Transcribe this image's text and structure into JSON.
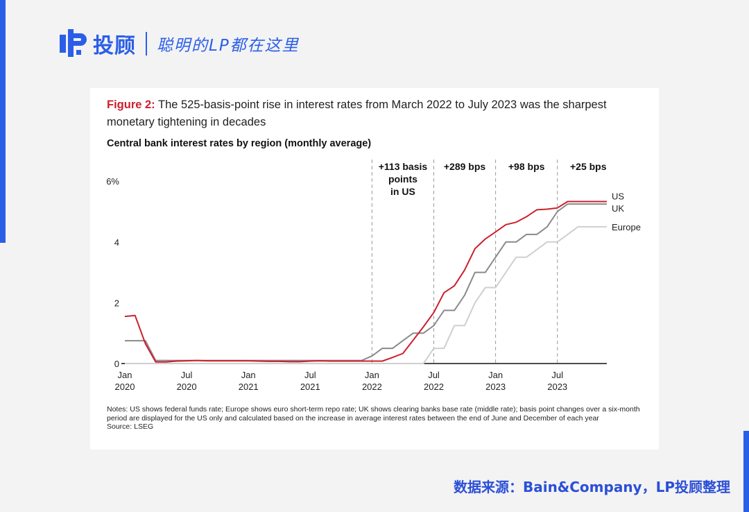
{
  "header": {
    "brand_name": "投顾",
    "slogan": "聪明的LP都在这里"
  },
  "figure": {
    "label": "Figure 2:",
    "title": "The 525-basis-point rise in interest rates from March 2022 to July 2023 was the sharpest monetary tightening in decades",
    "subtitle": "Central bank interest rates by region (monthly average)",
    "notes": "Notes: US shows federal funds rate; Europe shows euro short-term repo rate; UK shows clearing banks base rate (middle rate); basis point changes over a six-month period are displayed for the US only and calculated based on the increase in average interest rates between the end of June and December of each year",
    "source": "Source: LSEG"
  },
  "footer": {
    "source_text": "数据来源：Bain&Company，LP投顾整理"
  },
  "colors": {
    "brand": "#2b5ee8",
    "us": "#cc1f2c",
    "uk": "#8a8a8d",
    "europe": "#cfcfd1"
  },
  "chart_data": {
    "type": "line",
    "title": "Central bank interest rates by region (monthly average)",
    "xlabel": "",
    "ylabel": "",
    "ylim": [
      0,
      6
    ],
    "yticks": [
      {
        "value": 0,
        "label": "0"
      },
      {
        "value": 2,
        "label": "2"
      },
      {
        "value": 4,
        "label": "4"
      },
      {
        "value": 6,
        "label": "6%"
      }
    ],
    "xticks": [
      {
        "month": 0,
        "line1": "Jan",
        "line2": "2020"
      },
      {
        "month": 6,
        "line1": "Jul",
        "line2": "2020"
      },
      {
        "month": 12,
        "line1": "Jan",
        "line2": "2021"
      },
      {
        "month": 18,
        "line1": "Jul",
        "line2": "2021"
      },
      {
        "month": 24,
        "line1": "Jan",
        "line2": "2022"
      },
      {
        "month": 30,
        "line1": "Jul",
        "line2": "2022"
      },
      {
        "month": 36,
        "line1": "Jan",
        "line2": "2023"
      },
      {
        "month": 42,
        "line1": "Jul",
        "line2": "2023"
      }
    ],
    "x_months": [
      0,
      1,
      2,
      3,
      4,
      5,
      6,
      7,
      8,
      9,
      10,
      11,
      12,
      13,
      14,
      15,
      16,
      17,
      18,
      19,
      20,
      21,
      22,
      23,
      24,
      25,
      26,
      27,
      28,
      29,
      30,
      31,
      32,
      33,
      34,
      35,
      36,
      37,
      38,
      39,
      40,
      41,
      42,
      43,
      44,
      45,
      46,
      47
    ],
    "series": [
      {
        "name": "Europe",
        "label": "Europe",
        "values": [
          0,
          0,
          0,
          0,
          0,
          0,
          0,
          0,
          0,
          0,
          0,
          0,
          0,
          0,
          0,
          0,
          0,
          0,
          0,
          0,
          0,
          0,
          0,
          0,
          0,
          0,
          0,
          0,
          0,
          0,
          0.5,
          0.5,
          1.25,
          1.25,
          2.0,
          2.5,
          2.5,
          3.0,
          3.5,
          3.5,
          3.75,
          4.0,
          4.0,
          4.25,
          4.5,
          4.5,
          4.5,
          4.5
        ]
      },
      {
        "name": "UK",
        "label": "UK",
        "values": [
          0.75,
          0.75,
          0.75,
          0.1,
          0.1,
          0.1,
          0.1,
          0.1,
          0.1,
          0.1,
          0.1,
          0.1,
          0.1,
          0.1,
          0.1,
          0.1,
          0.1,
          0.1,
          0.1,
          0.1,
          0.1,
          0.1,
          0.1,
          0.1,
          0.25,
          0.5,
          0.5,
          0.75,
          1.0,
          1.0,
          1.25,
          1.75,
          1.75,
          2.25,
          3.0,
          3.0,
          3.5,
          4.0,
          4.0,
          4.25,
          4.25,
          4.5,
          5.0,
          5.25,
          5.25,
          5.25,
          5.25,
          5.25
        ]
      },
      {
        "name": "US",
        "label": "US",
        "values": [
          1.55,
          1.58,
          0.65,
          0.05,
          0.05,
          0.08,
          0.09,
          0.1,
          0.09,
          0.09,
          0.09,
          0.09,
          0.09,
          0.08,
          0.07,
          0.07,
          0.06,
          0.06,
          0.08,
          0.09,
          0.08,
          0.08,
          0.08,
          0.08,
          0.08,
          0.08,
          0.2,
          0.33,
          0.77,
          1.21,
          1.68,
          2.33,
          2.56,
          3.08,
          3.78,
          4.1,
          4.33,
          4.57,
          4.65,
          4.83,
          5.06,
          5.08,
          5.12,
          5.33,
          5.33,
          5.33,
          5.33,
          5.33
        ]
      }
    ],
    "annotations": [
      {
        "divider_month": 24,
        "label_lines": [
          "+113 basis",
          "points",
          "in US"
        ]
      },
      {
        "divider_month": 30,
        "label_lines": [
          "+289 bps"
        ]
      },
      {
        "divider_month": 36,
        "label_lines": [
          "+98 bps"
        ]
      },
      {
        "divider_month": 42,
        "label_lines": [
          "+25 bps"
        ]
      }
    ]
  }
}
